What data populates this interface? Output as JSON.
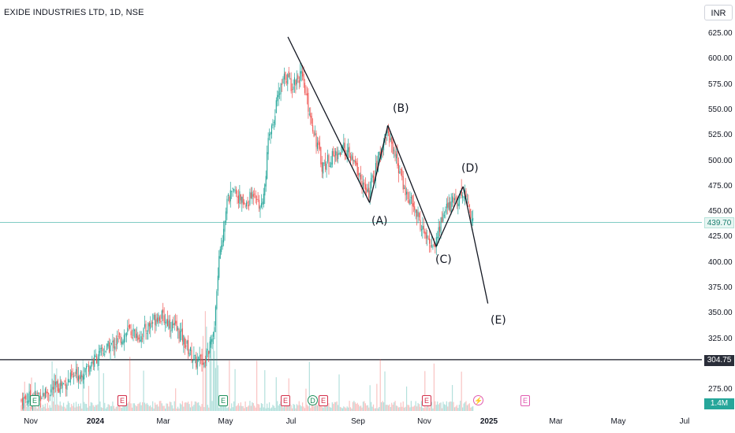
{
  "title": "EXIDE INDUSTRIES LTD, 1D, NSE",
  "currency": "INR",
  "colors": {
    "up": "#26a69a",
    "down": "#ef5350",
    "trendline": "#131722",
    "level": "#131722",
    "current_line": "#80cbc4"
  },
  "chart_data": {
    "type": "candlestick",
    "title": "EXIDE INDUSTRIES LTD, 1D, NSE",
    "y_ticks": [
      275,
      300,
      325,
      350,
      375,
      400,
      425,
      450,
      475,
      500,
      525,
      550,
      575,
      600,
      625
    ],
    "y_tick_labels": [
      "275.00",
      "300.00",
      "325.00",
      "350.00",
      "375.00",
      "400.00",
      "425.00",
      "450.00",
      "475.00",
      "500.00",
      "525.00",
      "550.00",
      "575.00",
      "600.00",
      "625.00"
    ],
    "ylim": [
      262,
      655
    ],
    "x_ticks": [
      "Nov",
      "2024",
      "Mar",
      "May",
      "Jul",
      "Sep",
      "Nov",
      "2025",
      "Mar",
      "May",
      "Jul"
    ],
    "current_price": "439.70",
    "horizontal_level": "304.75",
    "volume_label": "1.4M",
    "price_path": [
      [
        "2023-10-24",
        265
      ],
      [
        "2023-11-15",
        272
      ],
      [
        "2023-12-05",
        283
      ],
      [
        "2023-12-22",
        295
      ],
      [
        "2024-01-05",
        310
      ],
      [
        "2024-01-20",
        322
      ],
      [
        "2024-02-01",
        333
      ],
      [
        "2024-02-12",
        328
      ],
      [
        "2024-02-28",
        349
      ],
      [
        "2024-03-10",
        341
      ],
      [
        "2024-03-20",
        330
      ],
      [
        "2024-03-28",
        314
      ],
      [
        "2024-04-03",
        302
      ],
      [
        "2024-04-12",
        305
      ],
      [
        "2024-04-20",
        330
      ],
      [
        "2024-04-25",
        400
      ],
      [
        "2024-05-02",
        460
      ],
      [
        "2024-05-10",
        470
      ],
      [
        "2024-05-20",
        455
      ],
      [
        "2024-05-28",
        472
      ],
      [
        "2024-06-04",
        450
      ],
      [
        "2024-06-10",
        520
      ],
      [
        "2024-06-18",
        560
      ],
      [
        "2024-06-26",
        585
      ],
      [
        "2024-07-01",
        575
      ],
      [
        "2024-07-10",
        585
      ],
      [
        "2024-07-20",
        540
      ],
      [
        "2024-07-30",
        495
      ],
      [
        "2024-08-10",
        505
      ],
      [
        "2024-08-20",
        512
      ],
      [
        "2024-08-30",
        495
      ],
      [
        "2024-09-10",
        465
      ],
      [
        "2024-09-20",
        500
      ],
      [
        "2024-09-28",
        530
      ],
      [
        "2024-10-05",
        510
      ],
      [
        "2024-10-15",
        470
      ],
      [
        "2024-10-25",
        450
      ],
      [
        "2024-11-05",
        420
      ],
      [
        "2024-11-12",
        418
      ],
      [
        "2024-11-20",
        450
      ],
      [
        "2024-12-01",
        462
      ],
      [
        "2024-12-09",
        470
      ],
      [
        "2024-12-18",
        440
      ]
    ],
    "wave_points": [
      {
        "label": "",
        "date": "2024-06-28",
        "price": 622
      },
      {
        "label": "(A)",
        "date": "2024-09-12",
        "price": 459
      },
      {
        "label": "(B)",
        "date": "2024-09-29",
        "price": 535
      },
      {
        "label": "(C)",
        "date": "2024-11-13",
        "price": 416
      },
      {
        "label": "(D)",
        "date": "2024-12-08",
        "price": 475
      },
      {
        "label": "(E)",
        "date": "2024-12-31",
        "price": 360
      }
    ]
  },
  "wave_labels": {
    "a": "(A)",
    "b": "(B)",
    "c": "(C)",
    "d": "(D)",
    "e": "(E)"
  },
  "markers": [
    {
      "type": "E",
      "tone": "green"
    },
    {
      "type": "E",
      "tone": "red"
    },
    {
      "type": "E",
      "tone": "red"
    },
    {
      "type": "E",
      "tone": "green"
    },
    {
      "type": "E",
      "tone": "red"
    },
    {
      "type": "D",
      "tone": "green"
    },
    {
      "type": "E",
      "tone": "red"
    },
    {
      "type": "E",
      "tone": "red"
    },
    {
      "type": "⚡",
      "tone": "pink"
    },
    {
      "type": "E",
      "tone": "pink"
    }
  ]
}
